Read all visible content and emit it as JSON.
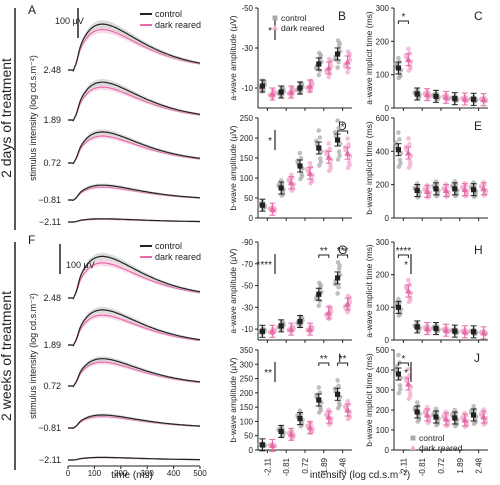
{
  "figure": {
    "section_top": "2 days of treatment",
    "section_bottom": "2 weeks of treatment",
    "waveform_ylabel": "stimulus intensity (log cd.s.m⁻²)",
    "waveform_xlabel": "time (ms)",
    "intensity_xlabel": "intensity (log cd.s.m⁻²)",
    "scalebar_label": "100 μV",
    "legend": {
      "control": "control",
      "dark": "dark reared"
    },
    "colors": {
      "control": "#222222",
      "dark": "#e66aa8",
      "control_pts": "#a9a9a9",
      "dark_pts": "#f2a9cc"
    },
    "intensities": [
      "-2.11",
      "-0.81",
      "0.72",
      "1.89",
      "2.48"
    ],
    "waveform_intensities": [
      "2.48",
      "1.89",
      "0.72",
      "−0.81",
      "−2.11"
    ],
    "time_ticks": [
      "0",
      "100",
      "200",
      "300",
      "400",
      "500"
    ],
    "significance": {
      "star1": "*",
      "star2": "**",
      "star3": "***",
      "star4": "****"
    }
  },
  "chart_data": [
    {
      "panel": "A",
      "type": "line",
      "xlabel": "time (ms)",
      "ylabel": "stimulus intensity (log cd.s.m⁻²)",
      "xlim": [
        0,
        500
      ],
      "traces": [
        {
          "intensity": "2.48",
          "control_peak_uV": 170,
          "dark_peak_uV": 150
        },
        {
          "intensity": "1.89",
          "control_peak_uV": 140,
          "dark_peak_uV": 122
        },
        {
          "intensity": "0.72",
          "control_peak_uV": 115,
          "dark_peak_uV": 100
        },
        {
          "intensity": "-0.81",
          "control_peak_uV": 55,
          "dark_peak_uV": 48
        },
        {
          "intensity": "-2.11",
          "control_peak_uV": 12,
          "dark_peak_uV": 10
        }
      ]
    },
    {
      "panel": "B",
      "type": "scatter",
      "ylabel": "a-wave amplitude (μV)",
      "ylim": [
        0,
        -50
      ],
      "yticks": [
        "-50",
        "-30",
        "-10"
      ],
      "scale": [
        -50,
        0
      ],
      "control": [
        -11,
        -8,
        -10,
        -22,
        -27
      ],
      "dark": [
        -7,
        -8,
        -11,
        -20,
        -23
      ],
      "annotations": [
        {
          "at": "legend",
          "text": "*"
        }
      ]
    },
    {
      "panel": "C",
      "type": "scatter",
      "ylabel": "a-wave implicit time (ms)",
      "yticks": [
        "0",
        "100",
        "200",
        "300"
      ],
      "scale": [
        0,
        300
      ],
      "control": [
        120,
        42,
        35,
        28,
        26
      ],
      "dark": [
        145,
        40,
        32,
        27,
        25
      ],
      "annotations": [
        {
          "at": "-2.11",
          "text": "*"
        }
      ]
    },
    {
      "panel": "D",
      "type": "scatter",
      "ylabel": "b-wave amplitude (μV)",
      "yticks": [
        "0",
        "50",
        "100",
        "150",
        "200",
        "250"
      ],
      "scale": [
        0,
        250
      ],
      "control": [
        32,
        75,
        130,
        175,
        195
      ],
      "dark": [
        22,
        88,
        112,
        152,
        162
      ],
      "annotations": [
        {
          "at": "legend",
          "text": "*"
        },
        {
          "at": "2.48",
          "text": "*"
        }
      ]
    },
    {
      "panel": "E",
      "type": "scatter",
      "ylabel": "b-wave implicit time (ms)",
      "yticks": [
        "0",
        "200",
        "400",
        "600"
      ],
      "scale": [
        0,
        600
      ],
      "control": [
        410,
        165,
        175,
        175,
        170
      ],
      "dark": [
        390,
        160,
        165,
        170,
        175
      ]
    },
    {
      "panel": "F",
      "type": "line",
      "xlabel": "time (ms)",
      "ylabel": "stimulus intensity (log cd.s.m⁻²)",
      "xlim": [
        0,
        500
      ],
      "traces": [
        {
          "intensity": "2.48",
          "control_peak_uV": 160,
          "dark_peak_uV": 135
        },
        {
          "intensity": "1.89",
          "control_peak_uV": 135,
          "dark_peak_uV": 115
        },
        {
          "intensity": "0.72",
          "control_peak_uV": 105,
          "dark_peak_uV": 92
        },
        {
          "intensity": "-0.81",
          "control_peak_uV": 50,
          "dark_peak_uV": 44
        },
        {
          "intensity": "-2.11",
          "control_peak_uV": 10,
          "dark_peak_uV": 9
        }
      ]
    },
    {
      "panel": "G",
      "type": "scatter",
      "ylabel": "a-wave amplitude (μV)",
      "ylim": [
        0,
        -90
      ],
      "yticks": [
        "-90",
        "-70",
        "-50",
        "-30",
        "-10"
      ],
      "scale": [
        -90,
        0
      ],
      "control": [
        -8,
        -13,
        -17,
        -42,
        -57
      ],
      "dark": [
        -8,
        -10,
        -10,
        -25,
        -33
      ],
      "annotations": [
        {
          "at": "legend",
          "text": "****"
        },
        {
          "at": "1.89",
          "text": "**"
        },
        {
          "at": "2.48",
          "text": "***"
        }
      ]
    },
    {
      "panel": "H",
      "type": "scatter",
      "ylabel": "a-wave implicit time (ms)",
      "yticks": [
        "0",
        "100",
        "200",
        "300"
      ],
      "scale": [
        0,
        300
      ],
      "control": [
        100,
        40,
        35,
        27,
        25
      ],
      "dark": [
        150,
        35,
        30,
        25,
        22
      ],
      "annotations": [
        {
          "at": "-2.11",
          "text": "****"
        },
        {
          "at": "legend",
          "text": "*"
        }
      ]
    },
    {
      "panel": "I",
      "type": "scatter",
      "ylabel": "b-wave amplitude (μV)",
      "yticks": [
        "0",
        "50",
        "100",
        "150",
        "200",
        "250",
        "300",
        "350"
      ],
      "scale": [
        0,
        350
      ],
      "control": [
        18,
        65,
        110,
        175,
        195
      ],
      "dark": [
        16,
        55,
        78,
        115,
        140
      ],
      "annotations": [
        {
          "at": "legend",
          "text": "**"
        },
        {
          "at": "1.89",
          "text": "**"
        },
        {
          "at": "2.48",
          "text": "**"
        }
      ]
    },
    {
      "panel": "J",
      "type": "scatter",
      "ylabel": "b-wave implicit time (ms)",
      "yticks": [
        "0",
        "100",
        "200",
        "300",
        "400",
        "500"
      ],
      "scale": [
        0,
        500
      ],
      "control": [
        380,
        190,
        165,
        160,
        175
      ],
      "dark": [
        330,
        175,
        155,
        150,
        165
      ],
      "annotations": [
        {
          "at": "-2.11",
          "text": "*"
        },
        {
          "at": "legend",
          "text": "*"
        }
      ]
    }
  ]
}
